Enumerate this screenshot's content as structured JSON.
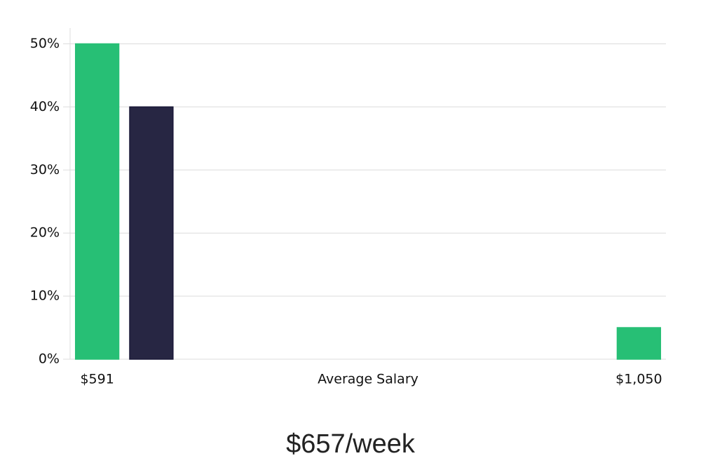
{
  "chart_data": {
    "type": "bar",
    "categories": [
      "$591",
      null,
      null,
      null,
      null,
      null,
      null,
      null,
      null,
      null,
      "$1,050"
    ],
    "values": [
      50,
      40,
      0,
      0,
      0,
      0,
      0,
      0,
      0,
      0,
      5
    ],
    "colors": [
      "#27bf75",
      "#272643",
      "#27bf75",
      "#27bf75",
      "#27bf75",
      "#27bf75",
      "#27bf75",
      "#27bf75",
      "#27bf75",
      "#27bf75",
      "#27bf75"
    ],
    "xlabel": "Average Salary",
    "ylim": [
      0,
      52.5
    ],
    "yticks": [
      {
        "value": 0,
        "label": "0%"
      },
      {
        "value": 10,
        "label": "10%"
      },
      {
        "value": 20,
        "label": "20%"
      },
      {
        "value": 30,
        "label": "30%"
      },
      {
        "value": 40,
        "label": "40%"
      },
      {
        "value": 50,
        "label": "50%"
      }
    ],
    "grid": true,
    "summary": "$657/week"
  }
}
